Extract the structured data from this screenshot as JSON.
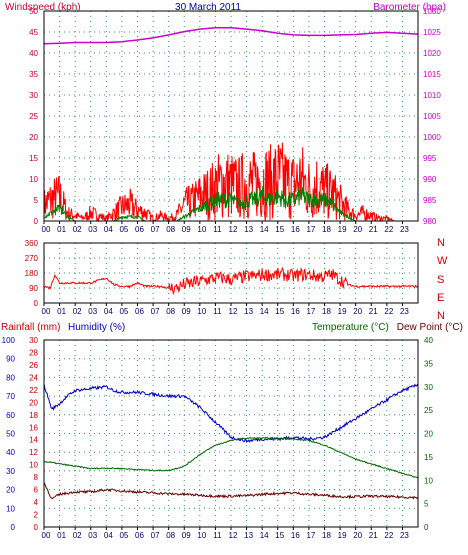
{
  "colors": {
    "wind_axis": "#cc0033",
    "baro": "#cc00cc",
    "title": "#000099",
    "dir": "#cc0000",
    "rain": "#cc0000",
    "humidity": "#0000cc",
    "temp": "#006600",
    "dew": "#660000",
    "grid": "#339966"
  },
  "chart_data": [
    {
      "type": "line",
      "title": "30 March 2011",
      "ylabel": "Windspeed (kph)",
      "y2label": "Barometer (hpa)",
      "ylim": [
        0,
        50
      ],
      "y2lim": [
        980,
        1030
      ],
      "yticks": [
        "0",
        "5",
        "10",
        "15",
        "20",
        "25",
        "30",
        "35",
        "40",
        "45",
        "50"
      ],
      "y2ticks": [
        "980",
        "985",
        "990",
        "995",
        "1000",
        "1005",
        "1010",
        "1015",
        "1020",
        "1025",
        "1030"
      ],
      "xticks": [
        "00",
        "01",
        "02",
        "03",
        "04",
        "05",
        "06",
        "07",
        "08",
        "09",
        "10",
        "11",
        "12",
        "13",
        "14",
        "15",
        "16",
        "17",
        "18",
        "19",
        "20",
        "21",
        "22",
        "23"
      ],
      "grid": true,
      "barometer": {
        "x": [
          0,
          1,
          2,
          3,
          4,
          5,
          6,
          7,
          8,
          9,
          10,
          11,
          12,
          13,
          14,
          15,
          16,
          17,
          18,
          19,
          20,
          21,
          22,
          23,
          24
        ],
        "y": [
          1022.2,
          1022.3,
          1022.5,
          1022.5,
          1022.5,
          1022.7,
          1023.1,
          1023.6,
          1024.3,
          1025.1,
          1025.7,
          1026,
          1026,
          1025.7,
          1025.3,
          1024.7,
          1024.3,
          1024.2,
          1024.2,
          1024.3,
          1024.4,
          1024.7,
          1024.9,
          1024.7,
          1024.5
        ]
      },
      "gust": {
        "x": [
          0,
          0.5,
          1,
          1.5,
          2,
          2.5,
          3,
          3.5,
          4,
          4.5,
          5,
          5.5,
          6,
          6.5,
          7,
          7.5,
          8,
          8.5,
          9,
          9.5,
          10,
          10.5,
          11,
          11.5,
          12,
          12.5,
          13,
          13.5,
          14,
          14.5,
          15,
          15.5,
          16,
          16.5,
          17,
          17.5,
          18,
          18.5,
          19,
          19.5,
          20,
          20.5,
          21,
          21.5,
          22,
          22.5,
          23
        ],
        "y": [
          6,
          8,
          9,
          3,
          2,
          1,
          3,
          2,
          1,
          3,
          5,
          6,
          4,
          3,
          1,
          2,
          1,
          2,
          6,
          7,
          9,
          10,
          12,
          14,
          13,
          12,
          14,
          13,
          15,
          14,
          16,
          14,
          13,
          15,
          12,
          13,
          11,
          10,
          7,
          4,
          2,
          3,
          2,
          1,
          1,
          0,
          0
        ]
      },
      "windspeed": {
        "x": [
          0,
          0.5,
          1,
          1.5,
          2,
          2.5,
          3,
          3.5,
          4,
          4.5,
          5,
          5.5,
          6,
          6.5,
          7,
          7.5,
          8,
          8.5,
          9,
          9.5,
          10,
          10.5,
          11,
          11.5,
          12,
          12.5,
          13,
          13.5,
          14,
          14.5,
          15,
          15.5,
          16,
          16.5,
          17,
          17.5,
          18,
          18.5,
          19,
          19.5,
          20,
          20.5,
          21,
          21.5,
          22,
          22.5,
          23
        ],
        "y": [
          1,
          2,
          3,
          1,
          0,
          0,
          0,
          0,
          0,
          0,
          1,
          1,
          1,
          0,
          0,
          0,
          0,
          0,
          1,
          2,
          3,
          4,
          5,
          5,
          5,
          4,
          5,
          5,
          6,
          5,
          6,
          5,
          5,
          6,
          5,
          5,
          5,
          4,
          2,
          1,
          0,
          0,
          0,
          0,
          0,
          0,
          0
        ]
      }
    },
    {
      "type": "line",
      "ylim": [
        0,
        360
      ],
      "yticks": [
        "0",
        "90",
        "180",
        "270",
        "360"
      ],
      "y2ticks": [
        "N",
        "W",
        "S",
        "E",
        "N"
      ],
      "xticks": [
        "00",
        "01",
        "02",
        "03",
        "04",
        "05",
        "06",
        "07",
        "08",
        "09",
        "10",
        "11",
        "12",
        "13",
        "14",
        "15",
        "16",
        "17",
        "18",
        "19",
        "20",
        "21",
        "22",
        "23"
      ],
      "grid": true,
      "direction": {
        "x": [
          0,
          0.4,
          0.7,
          1,
          1.5,
          2,
          3,
          4,
          4.5,
          5,
          5.5,
          6,
          6.5,
          7,
          7.5,
          8,
          8.5,
          9,
          9.5,
          10,
          10.5,
          11,
          11.5,
          12,
          12.5,
          13,
          13.5,
          14,
          14.5,
          15,
          15.5,
          16,
          16.5,
          17,
          17.5,
          18,
          18.5,
          19,
          19.5,
          20,
          20.5,
          21,
          22,
          23,
          24
        ],
        "y": [
          100,
          90,
          170,
          120,
          120,
          120,
          120,
          150,
          110,
          100,
          100,
          120,
          100,
          100,
          100,
          90,
          90,
          110,
          120,
          130,
          140,
          150,
          150,
          140,
          150,
          160,
          160,
          170,
          170,
          170,
          170,
          160,
          170,
          170,
          160,
          160,
          170,
          140,
          110,
          100,
          100,
          100,
          100,
          100,
          100
        ]
      }
    },
    {
      "type": "line",
      "ylabels": [
        "Rainfall (mm)",
        "Humidity (%)"
      ],
      "y2labels": [
        "Temperature (°C)",
        "Dew Point (°C)"
      ],
      "humidity_ticks": [
        "0",
        "10",
        "20",
        "30",
        "40",
        "50",
        "60",
        "70",
        "80",
        "90",
        "100"
      ],
      "rain_ticks": [
        "0",
        "2",
        "4",
        "6",
        "8",
        "10",
        "12",
        "14",
        "16",
        "18",
        "20",
        "22",
        "24",
        "26",
        "28",
        "30"
      ],
      "temp_ticks": [
        "0",
        "5",
        "10",
        "15",
        "20",
        "25",
        "30",
        "35",
        "40"
      ],
      "xticks": [
        "00",
        "01",
        "02",
        "03",
        "04",
        "05",
        "06",
        "07",
        "08",
        "09",
        "10",
        "11",
        "12",
        "13",
        "14",
        "15",
        "16",
        "17",
        "18",
        "19",
        "20",
        "21",
        "22",
        "23"
      ],
      "grid": true,
      "humidity": {
        "x": [
          0,
          0.5,
          1,
          1.5,
          2,
          3,
          4,
          4.5,
          5,
          6,
          7,
          8,
          9,
          10,
          11,
          12,
          13,
          14,
          15,
          16,
          17,
          18,
          19,
          20,
          21,
          22,
          23,
          24
        ],
        "y": [
          76,
          63,
          66,
          70,
          73,
          74,
          75,
          73,
          72,
          72,
          71,
          70,
          70,
          64,
          56,
          48,
          46,
          47,
          47,
          48,
          47,
          48,
          53,
          58,
          63,
          68,
          73,
          76
        ]
      },
      "temperature": {
        "x": [
          0,
          0.5,
          1,
          2,
          3,
          4,
          5,
          6,
          7,
          8,
          9,
          10,
          11,
          12,
          13,
          14,
          15,
          16,
          17,
          18,
          19,
          20,
          21,
          22,
          23,
          24
        ],
        "y": [
          14,
          13.8,
          13.5,
          13,
          12.5,
          12.6,
          12.5,
          12.3,
          12.1,
          12.1,
          13,
          15.5,
          17.5,
          18.5,
          19,
          19,
          19,
          18.8,
          18.5,
          17.5,
          16,
          14.5,
          13.5,
          12.5,
          11.5,
          10.5
        ]
      },
      "dew_point": {
        "x": [
          0,
          0.5,
          1,
          2,
          3,
          4,
          5,
          6,
          7,
          8,
          9,
          10,
          11,
          12,
          13,
          14,
          15,
          16,
          17,
          18,
          19,
          20,
          21,
          22,
          23,
          24
        ],
        "y": [
          9.5,
          6,
          7,
          7.5,
          7.5,
          8,
          7.7,
          7.5,
          7.3,
          7.1,
          7,
          6.8,
          6.6,
          6.6,
          6.7,
          7,
          7.2,
          7.3,
          7,
          6.8,
          6.5,
          6.5,
          6.6,
          6.5,
          6.4,
          6.3
        ]
      }
    }
  ]
}
